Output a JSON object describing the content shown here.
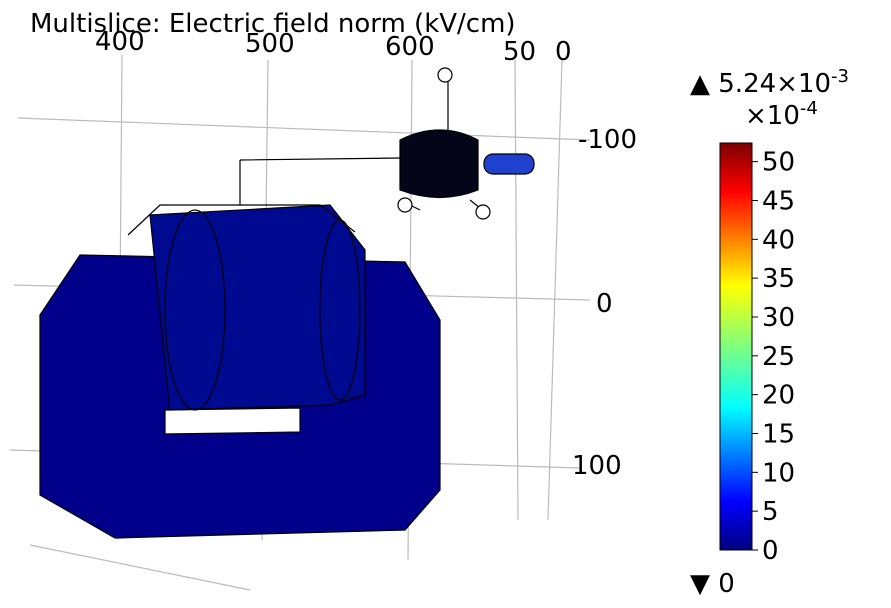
{
  "title": "Multislice: Electric field norm (kV/cm)",
  "axes": {
    "top_ticks": [
      "400",
      "500",
      "600",
      "50",
      "0"
    ],
    "side_ticks": [
      "-100",
      "0",
      "100"
    ]
  },
  "colorbar": {
    "max": {
      "mantissa": "5.24×10",
      "exponent": "-3"
    },
    "multiplier": {
      "base": "×10",
      "exponent": "-4"
    },
    "ticks": [
      0,
      5,
      10,
      15,
      20,
      25,
      30,
      35,
      40,
      45,
      50
    ],
    "range": [
      0,
      52.4
    ],
    "min": "0"
  }
}
